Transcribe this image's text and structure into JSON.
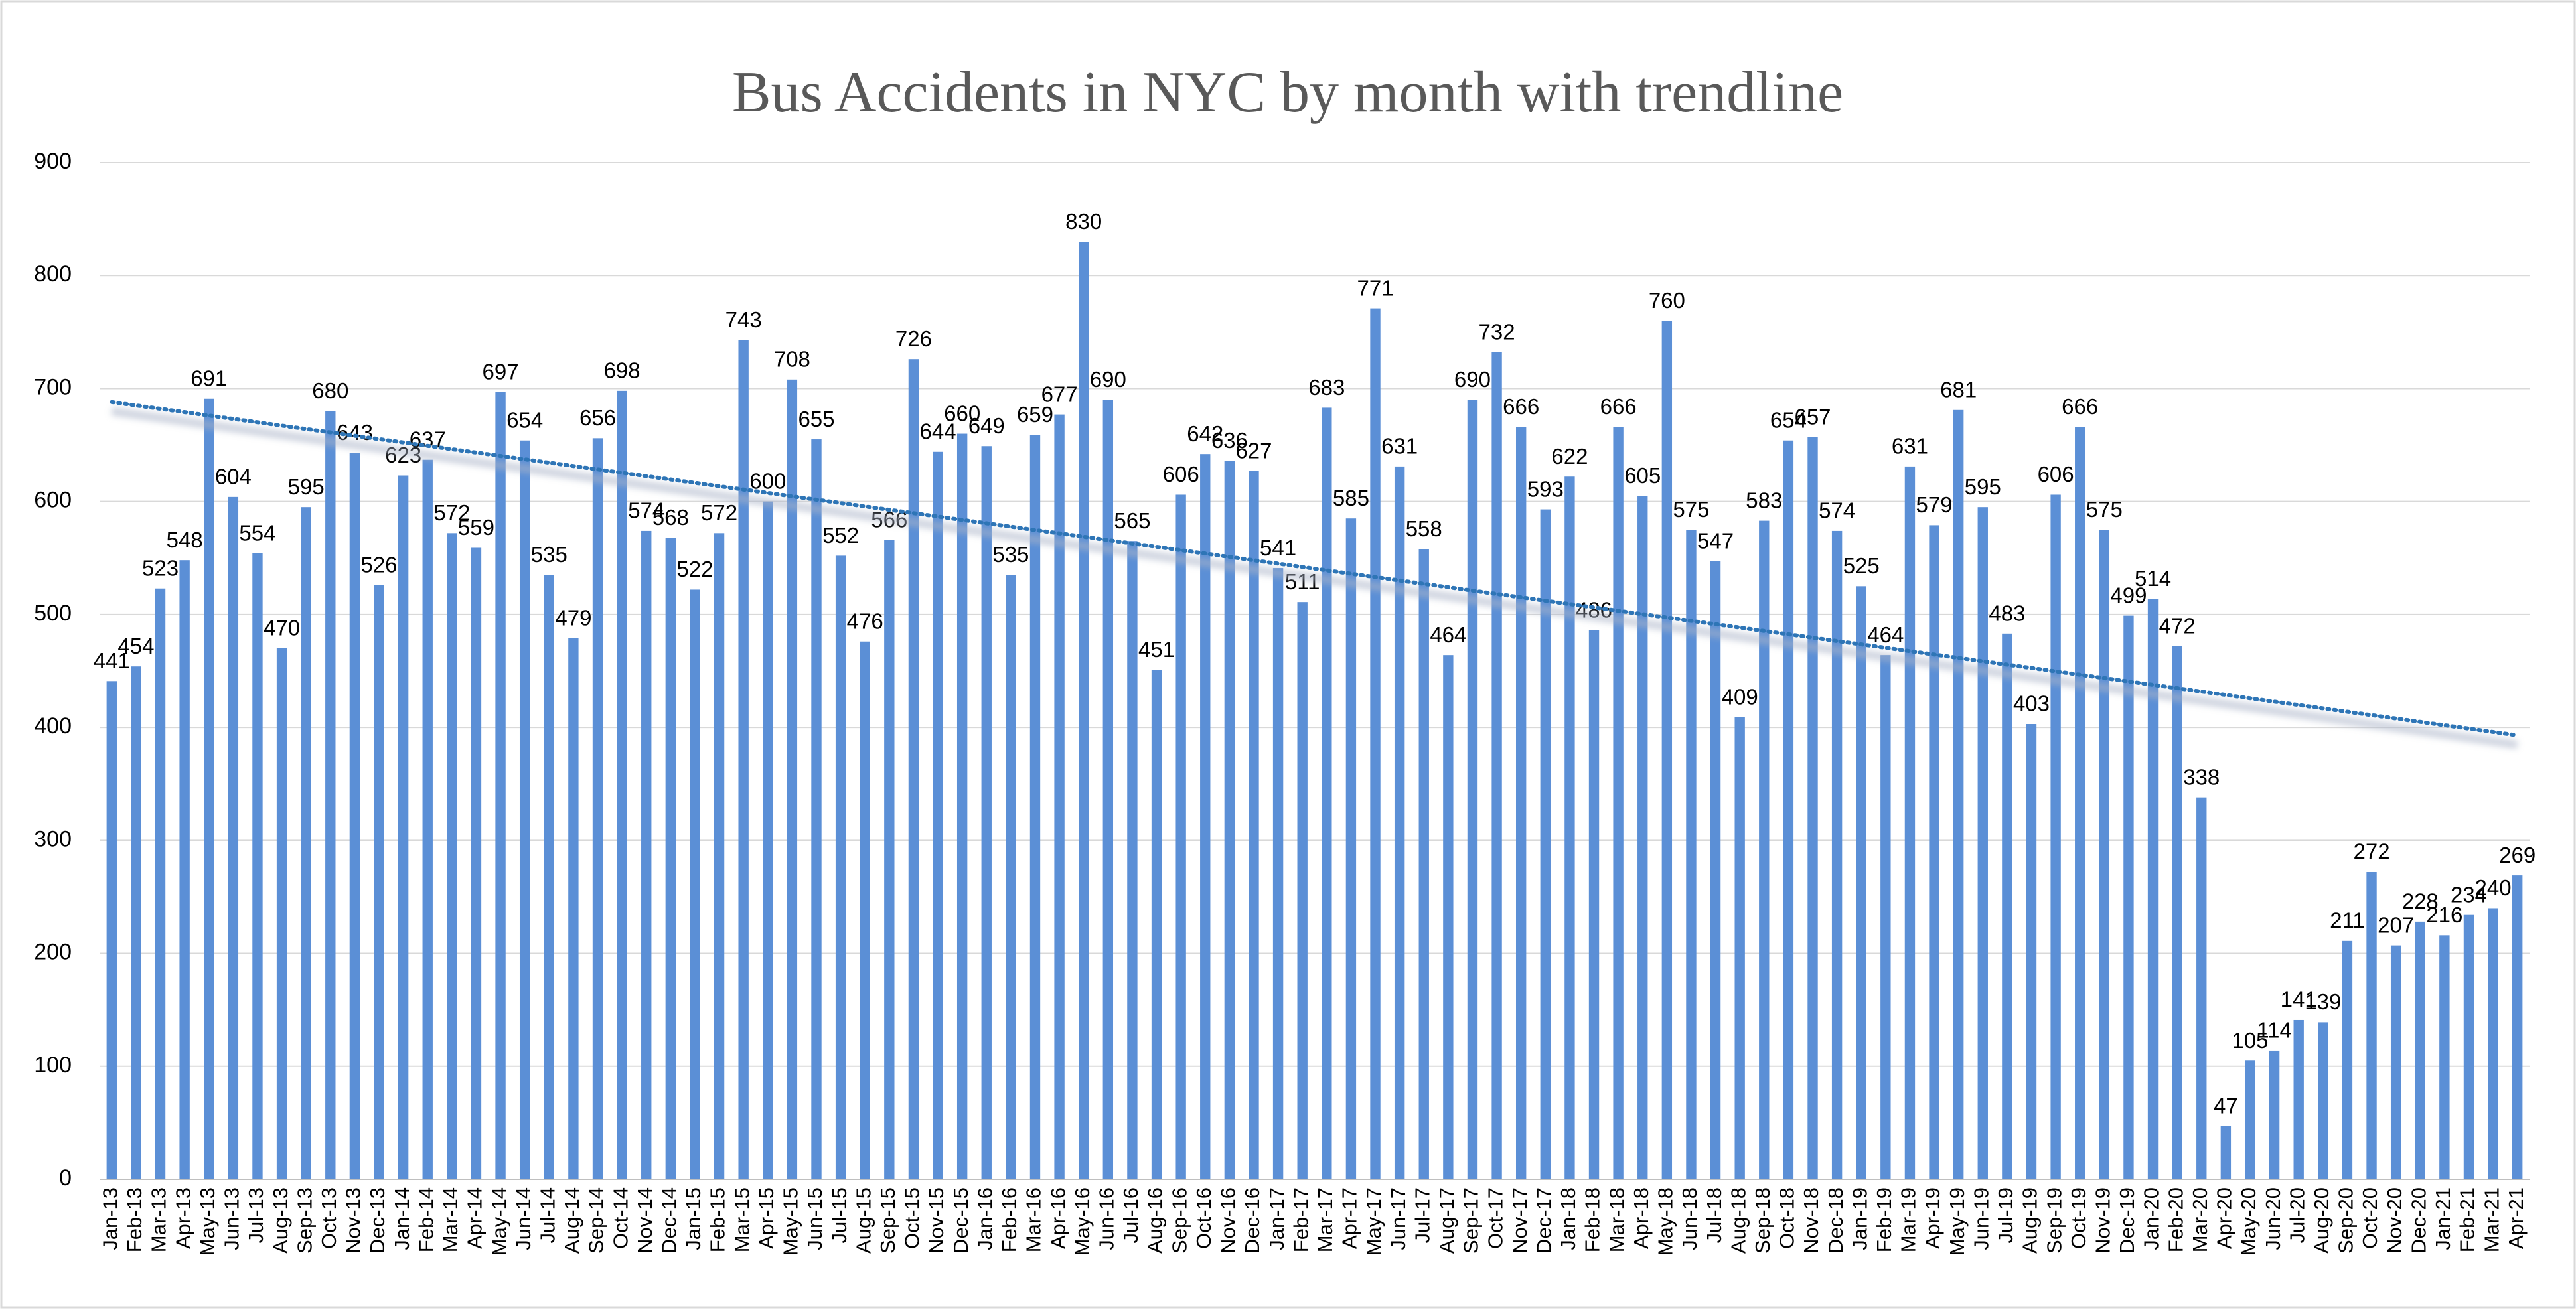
{
  "chart_data": {
    "type": "bar",
    "title": "Bus Accidents in NYC by month with trendline",
    "categories": [
      "Jan-13",
      "Feb-13",
      "Mar-13",
      "Apr-13",
      "May-13",
      "Jun-13",
      "Jul-13",
      "Aug-13",
      "Sep-13",
      "Oct-13",
      "Nov-13",
      "Dec-13",
      "Jan-14",
      "Feb-14",
      "Mar-14",
      "Apr-14",
      "May-14",
      "Jun-14",
      "Jul-14",
      "Aug-14",
      "Sep-14",
      "Oct-14",
      "Nov-14",
      "Dec-14",
      "Jan-15",
      "Feb-15",
      "Mar-15",
      "Apr-15",
      "May-15",
      "Jun-15",
      "Jul-15",
      "Aug-15",
      "Sep-15",
      "Oct-15",
      "Nov-15",
      "Dec-15",
      "Jan-16",
      "Feb-16",
      "Mar-16",
      "Apr-16",
      "May-16",
      "Jun-16",
      "Jul-16",
      "Aug-16",
      "Sep-16",
      "Oct-16",
      "Nov-16",
      "Dec-16",
      "Jan-17",
      "Feb-17",
      "Mar-17",
      "Apr-17",
      "May-17",
      "Jun-17",
      "Jul-17",
      "Aug-17",
      "Sep-17",
      "Oct-17",
      "Nov-17",
      "Dec-17",
      "Jan-18",
      "Feb-18",
      "Mar-18",
      "Apr-18",
      "May-18",
      "Jun-18",
      "Jul-18",
      "Aug-18",
      "Sep-18",
      "Oct-18",
      "Nov-18",
      "Dec-18",
      "Jan-19",
      "Feb-19",
      "Mar-19",
      "Apr-19",
      "May-19",
      "Jun-19",
      "Jul-19",
      "Aug-19",
      "Sep-19",
      "Oct-19",
      "Nov-19",
      "Dec-19",
      "Jan-20",
      "Feb-20",
      "Mar-20",
      "Apr-20",
      "May-20",
      "Jun-20",
      "Jul-20",
      "Aug-20",
      "Sep-20",
      "Oct-20",
      "Nov-20",
      "Dec-20",
      "Jan-21",
      "Feb-21",
      "Mar-21",
      "Apr-21"
    ],
    "values": [
      441,
      454,
      523,
      548,
      691,
      604,
      554,
      470,
      595,
      680,
      643,
      526,
      623,
      637,
      572,
      559,
      697,
      654,
      535,
      479,
      656,
      698,
      574,
      568,
      522,
      572,
      743,
      600,
      708,
      655,
      552,
      476,
      566,
      726,
      644,
      660,
      649,
      535,
      659,
      677,
      830,
      690,
      565,
      451,
      606,
      642,
      636,
      627,
      541,
      511,
      683,
      585,
      771,
      631,
      558,
      464,
      690,
      732,
      666,
      593,
      622,
      486,
      666,
      605,
      760,
      575,
      547,
      409,
      583,
      654,
      657,
      574,
      525,
      464,
      631,
      579,
      681,
      595,
      483,
      403,
      606,
      666,
      575,
      499,
      514,
      472,
      338,
      47,
      105,
      114,
      141,
      139,
      211,
      272,
      207,
      228,
      216,
      234,
      240,
      269
    ],
    "color": "#5b8fd6",
    "trendline": {
      "values": [
        688,
        393
      ],
      "color": "#2e75b6"
    },
    "ylim": [
      0,
      900
    ],
    "yticks": [
      0,
      100,
      200,
      300,
      400,
      500,
      600,
      700,
      800,
      900
    ],
    "grid": true
  }
}
